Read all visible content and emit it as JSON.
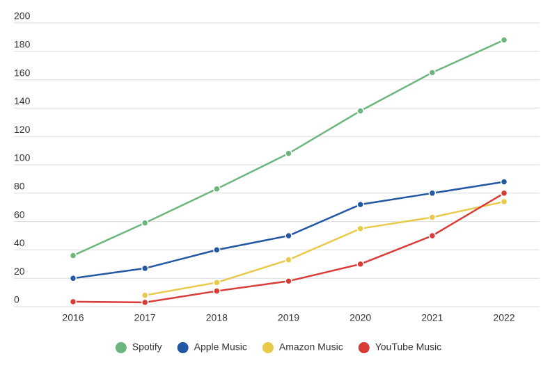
{
  "chart_data": {
    "type": "line",
    "categories": [
      "2016",
      "2017",
      "2018",
      "2019",
      "2020",
      "2021",
      "2022"
    ],
    "series": [
      {
        "name": "Spotify",
        "color": "#6db57d",
        "values": [
          36,
          59,
          83,
          108,
          138,
          165,
          188
        ]
      },
      {
        "name": "Apple Music",
        "color": "#2257a3",
        "values": [
          20,
          27,
          40,
          50,
          72,
          80,
          88
        ]
      },
      {
        "name": "Amazon Music",
        "color": "#e8c94a",
        "values": [
          null,
          8,
          17,
          33,
          55,
          63,
          74
        ]
      },
      {
        "name": "YouTube Music",
        "color": "#d93b36",
        "values": [
          3.5,
          3,
          11,
          18,
          30,
          50,
          80
        ]
      }
    ],
    "ylim": [
      0,
      200
    ],
    "yticks": [
      0,
      20,
      40,
      60,
      80,
      100,
      120,
      140,
      160,
      180,
      200
    ],
    "grid": true,
    "legend": "bottom"
  }
}
